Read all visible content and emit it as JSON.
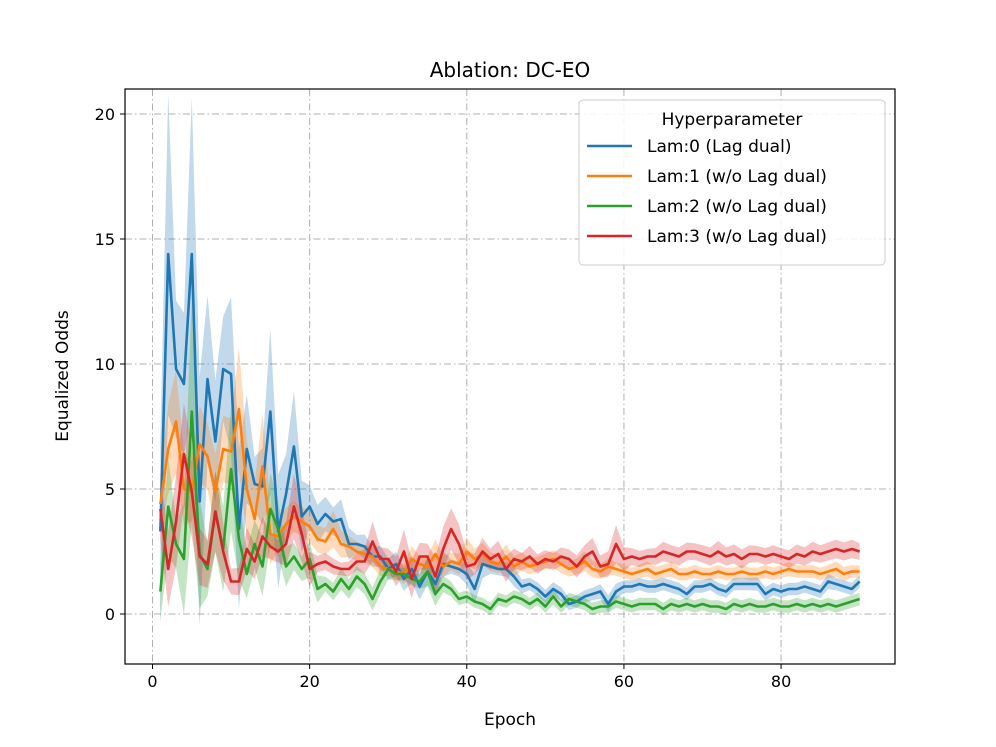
{
  "chart_data": {
    "type": "line",
    "title": "Ablation: DC-EO",
    "xlabel": "Epoch",
    "ylabel": "Equalized Odds",
    "xlim": [
      -3.5,
      94.5
    ],
    "ylim": [
      -2,
      21
    ],
    "x_ticks": [
      0,
      20,
      40,
      60,
      80
    ],
    "y_ticks": [
      0,
      5,
      10,
      15,
      20
    ],
    "grid": true,
    "legend": {
      "title": "Hyperparameter",
      "placement": "top-right"
    },
    "x": [
      1,
      2,
      3,
      4,
      5,
      6,
      7,
      8,
      9,
      10,
      11,
      12,
      13,
      14,
      15,
      16,
      17,
      18,
      19,
      20,
      21,
      22,
      23,
      24,
      25,
      26,
      27,
      28,
      29,
      30,
      31,
      32,
      33,
      34,
      35,
      36,
      37,
      38,
      39,
      40,
      41,
      42,
      43,
      44,
      45,
      46,
      47,
      48,
      49,
      50,
      51,
      52,
      53,
      54,
      55,
      56,
      57,
      58,
      59,
      60,
      61,
      62,
      63,
      64,
      65,
      66,
      67,
      68,
      69,
      70,
      71,
      72,
      73,
      74,
      75,
      76,
      77,
      78,
      79,
      80,
      81,
      82,
      83,
      84,
      85,
      86,
      87,
      88,
      89,
      90
    ],
    "series": [
      {
        "name": "Lam:0 (Lag dual)",
        "color": "#1f77b4",
        "values": [
          3.3,
          14.4,
          9.8,
          9.2,
          14.4,
          4.5,
          9.4,
          6.9,
          9.8,
          9.6,
          3.4,
          6.6,
          5.2,
          5.1,
          8.1,
          3.3,
          4.8,
          6.7,
          3.9,
          4.3,
          3.6,
          4.0,
          3.7,
          3.8,
          2.8,
          2.8,
          2.7,
          2.3,
          2.3,
          1.8,
          2.0,
          1.4,
          1.8,
          1.1,
          1.7,
          1.2,
          2.0,
          1.9,
          1.8,
          1.6,
          1.0,
          2.0,
          1.9,
          1.8,
          1.8,
          1.5,
          1.1,
          1.2,
          1.0,
          0.7,
          1.0,
          0.8,
          0.4,
          0.5,
          0.7,
          0.8,
          0.9,
          0.4,
          0.9,
          1.1,
          1.1,
          1.2,
          1.1,
          1.1,
          1.2,
          1.1,
          1.0,
          0.8,
          1.1,
          1.1,
          1.2,
          1.0,
          0.9,
          1.2,
          1.2,
          1.2,
          1.2,
          0.8,
          1.0,
          0.9,
          1.0,
          1.0,
          1.1,
          1.0,
          0.9,
          1.3,
          1.2,
          1.1,
          1.0,
          1.3
        ]
      },
      {
        "name": "Lam:1 (w/o Lag dual)",
        "color": "#ff7f0e",
        "values": [
          4.4,
          6.6,
          7.7,
          5.0,
          4.9,
          6.8,
          6.3,
          4.9,
          6.6,
          6.5,
          8.2,
          5.0,
          3.8,
          5.9,
          3.2,
          3.1,
          3.6,
          3.9,
          3.7,
          3.5,
          3.0,
          2.9,
          3.4,
          2.8,
          2.7,
          2.5,
          2.4,
          2.3,
          1.9,
          1.8,
          1.7,
          1.6,
          2.2,
          2.0,
          1.9,
          2.4,
          1.9,
          2.1,
          2.0,
          2.5,
          2.2,
          2.4,
          2.1,
          2.0,
          2.3,
          1.9,
          2.1,
          1.9,
          2.0,
          2.1,
          2.2,
          2.0,
          1.8,
          1.9,
          2.1,
          1.8,
          1.7,
          1.9,
          1.8,
          1.7,
          1.6,
          1.7,
          1.8,
          1.6,
          1.7,
          1.8,
          1.6,
          1.6,
          1.7,
          1.6,
          1.6,
          1.7,
          1.6,
          1.6,
          1.7,
          1.6,
          1.6,
          1.7,
          1.6,
          1.7,
          1.8,
          1.7,
          1.7,
          1.7,
          1.6,
          1.7,
          1.8,
          1.6,
          1.7,
          1.7
        ]
      },
      {
        "name": "Lam:2 (w/o Lag dual)",
        "color": "#2ca02c",
        "values": [
          0.9,
          4.3,
          2.8,
          2.2,
          8.1,
          2.4,
          1.8,
          4.1,
          2.6,
          5.8,
          3.0,
          1.6,
          2.8,
          1.9,
          4.2,
          3.4,
          1.9,
          2.3,
          1.8,
          2.2,
          1.0,
          1.2,
          0.9,
          1.4,
          1.0,
          1.5,
          1.2,
          0.6,
          1.3,
          1.8,
          1.6,
          1.6,
          1.4,
          1.3,
          1.7,
          0.8,
          1.2,
          1.0,
          0.6,
          0.7,
          0.5,
          0.4,
          0.2,
          0.6,
          0.5,
          0.7,
          0.6,
          0.4,
          0.6,
          0.3,
          0.7,
          0.3,
          0.6,
          0.5,
          0.4,
          0.2,
          0.3,
          0.3,
          0.5,
          0.4,
          0.3,
          0.4,
          0.4,
          0.4,
          0.2,
          0.4,
          0.3,
          0.4,
          0.3,
          0.4,
          0.3,
          0.3,
          0.2,
          0.4,
          0.3,
          0.4,
          0.3,
          0.3,
          0.4,
          0.3,
          0.3,
          0.4,
          0.3,
          0.4,
          0.3,
          0.4,
          0.3,
          0.4,
          0.5,
          0.6
        ]
      },
      {
        "name": "Lam:3 (w/o Lag dual)",
        "color": "#d62728",
        "values": [
          4.2,
          1.8,
          3.7,
          6.4,
          4.9,
          2.3,
          2.0,
          4.1,
          2.5,
          1.3,
          1.3,
          2.6,
          2.1,
          3.1,
          2.7,
          2.5,
          2.8,
          4.3,
          3.2,
          1.8,
          2.0,
          2.1,
          1.9,
          1.8,
          1.8,
          2.1,
          2.1,
          2.9,
          2.2,
          2.2,
          1.7,
          2.5,
          1.4,
          2.3,
          2.3,
          1.5,
          2.6,
          3.4,
          2.8,
          1.9,
          2.0,
          2.5,
          2.2,
          2.4,
          1.8,
          2.2,
          2.1,
          2.3,
          2.0,
          2.2,
          2.1,
          2.3,
          2.2,
          1.9,
          2.3,
          2.5,
          1.9,
          2.0,
          2.8,
          2.2,
          2.3,
          2.2,
          2.3,
          2.3,
          2.5,
          2.4,
          2.3,
          2.5,
          2.5,
          2.4,
          2.3,
          2.5,
          2.3,
          2.4,
          2.2,
          2.4,
          2.4,
          2.3,
          2.4,
          2.3,
          2.2,
          2.4,
          2.3,
          2.5,
          2.4,
          2.5,
          2.6,
          2.5,
          2.6,
          2.5
        ]
      }
    ]
  }
}
